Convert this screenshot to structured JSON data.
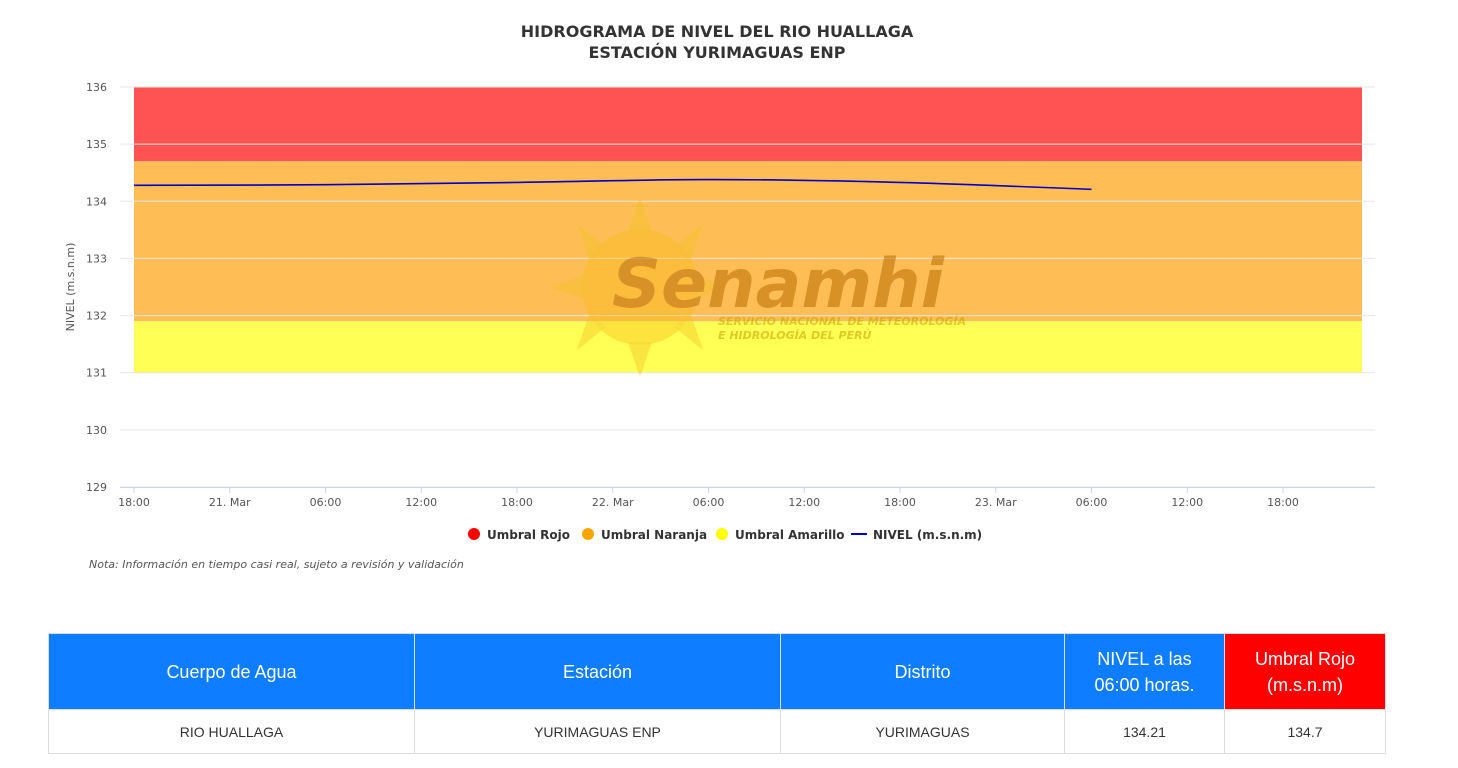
{
  "chart": {
    "title_line1": "HIDROGRAMA DE NIVEL DEL RIO HUALLAGA",
    "title_line2": "ESTACIÓN YURIMAGUAS ENP",
    "note": "Nota: Información en tiempo casi real, sujeto a revisión y validación",
    "watermark": {
      "word": "Senamhi",
      "line1": "SERVICIO NACIONAL DE METEOROLOGÍA",
      "line2": "E HIDROLOGÍA DEL PERÚ"
    }
  },
  "chart_data": {
    "type": "line",
    "title": "HIDROGRAMA DE NIVEL DEL RIO HUALLAGA ESTACIÓN YURIMAGUAS ENP",
    "xlabel": "",
    "ylabel": "NIVEL (m.s.n.m)",
    "ylim": [
      129,
      136
    ],
    "y_ticks": [
      "129",
      "130",
      "131",
      "132",
      "133",
      "134",
      "135",
      "136"
    ],
    "xlim": [
      "2024-03-20T18:00",
      "2024-03-23T22:00"
    ],
    "x_ticks": [
      {
        "t": "2024-03-20T18:00",
        "label": "18:00"
      },
      {
        "t": "2024-03-21T00:00",
        "label": "21. Mar"
      },
      {
        "t": "2024-03-21T06:00",
        "label": "06:00"
      },
      {
        "t": "2024-03-21T12:00",
        "label": "12:00"
      },
      {
        "t": "2024-03-21T18:00",
        "label": "18:00"
      },
      {
        "t": "2024-03-22T00:00",
        "label": "22. Mar"
      },
      {
        "t": "2024-03-22T06:00",
        "label": "06:00"
      },
      {
        "t": "2024-03-22T12:00",
        "label": "12:00"
      },
      {
        "t": "2024-03-22T18:00",
        "label": "18:00"
      },
      {
        "t": "2024-03-23T00:00",
        "label": "23. Mar"
      },
      {
        "t": "2024-03-23T06:00",
        "label": "06:00"
      },
      {
        "t": "2024-03-23T12:00",
        "label": "12:00"
      },
      {
        "t": "2024-03-23T18:00",
        "label": "18:00"
      }
    ],
    "bands": [
      {
        "name": "Umbral Rojo",
        "from": 134.7,
        "to": 136,
        "color": "#ff5252",
        "legend_color": "#ff0000"
      },
      {
        "name": "Umbral Naranja",
        "from": 131.9,
        "to": 134.7,
        "color": "#ffbe55",
        "legend_color": "#ffa500"
      },
      {
        "name": "Umbral Amarillo",
        "from": 131.0,
        "to": 131.9,
        "color": "#ffff55",
        "legend_color": "#ffff00"
      }
    ],
    "series": [
      {
        "name": "NIVEL (m.s.n.m)",
        "color": "#0000cc",
        "points": [
          {
            "t": "2024-03-20T18:00",
            "y": 134.28
          },
          {
            "t": "2024-03-21T06:00",
            "y": 134.29
          },
          {
            "t": "2024-03-21T18:00",
            "y": 134.33
          },
          {
            "t": "2024-03-22T06:00",
            "y": 134.38
          },
          {
            "t": "2024-03-22T18:00",
            "y": 134.33
          },
          {
            "t": "2024-03-23T06:00",
            "y": 134.21
          }
        ]
      }
    ],
    "legend": [
      "Umbral Rojo",
      "Umbral Naranja",
      "Umbral Amarillo",
      "NIVEL (m.s.n.m)"
    ],
    "grid": true,
    "legend_position": "bottom-center"
  },
  "table": {
    "headers": [
      "Cuerpo de Agua",
      "Estación",
      "Distrito",
      "NIVEL a las 06:00 horas.",
      "Umbral Rojo (m.s.n.m)"
    ],
    "header_colors": {
      "default": "#0f7dff",
      "umbral": "#ff0000"
    },
    "row": [
      "RIO HUALLAGA",
      "YURIMAGUAS ENP",
      "YURIMAGUAS",
      "134.21",
      "134.7"
    ]
  }
}
